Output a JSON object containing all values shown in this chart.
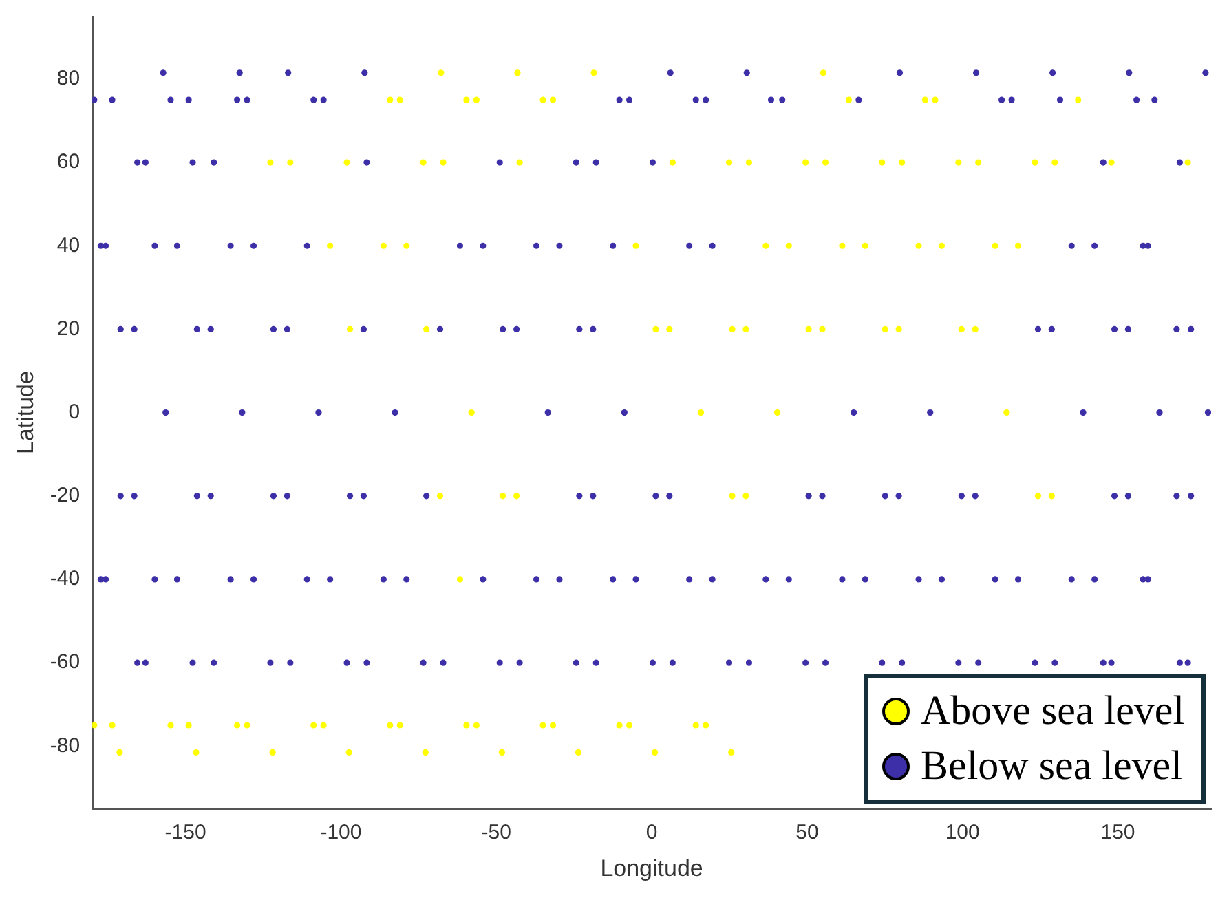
{
  "chart_data": {
    "type": "scatter",
    "xlabel": "Longitude",
    "ylabel": "Latitude",
    "xlim": [
      -180,
      180
    ],
    "ylim": [
      -95,
      95
    ],
    "xticks": [
      -150,
      -100,
      -50,
      0,
      50,
      100,
      150
    ],
    "yticks": [
      -80,
      -60,
      -40,
      -20,
      0,
      20,
      40,
      60,
      80
    ],
    "grid": false,
    "legend": "bottom right",
    "marker": "circle",
    "series": [
      {
        "name": "Above sea level",
        "color": "#ffff00",
        "x": [
          -122.7,
          -108.8,
          -98.1,
          -84.2,
          -179.4,
          -84.2,
          -67.8,
          -97.1,
          -86.3,
          -73.5,
          -59.6,
          -154.8,
          -59.6,
          -43.2,
          -171.2,
          -72.5,
          -103.5,
          -61.7,
          -116.3,
          -35.0,
          -130.2,
          -35.0,
          -18.6,
          -146.6,
          -58.0,
          -68.1,
          -47.9,
          -78.9,
          -105.6,
          -10.4,
          -122.0,
          -43.5,
          -67.1,
          -81.0,
          -81.0,
          14.2,
          -97.4,
          1.3,
          -42.5,
          24.9,
          -56.4,
          -56.4,
          -72.8,
          55.2,
          15.8,
          5.7,
          25.9,
          25.9,
          -5.1,
          36.7,
          49.5,
          -31.8,
          63.4,
          -31.8,
          -48.2,
          40.4,
          30.3,
          50.5,
          30.3,
          61.3,
          6.7,
          74.1,
          88.0,
          -7.2,
          -23.6,
          54.9,
          75.1,
          44.1,
          85.9,
          31.3,
          98.7,
          17.4,
          1.0,
          79.5,
          99.7,
          68.7,
          110.5,
          55.9,
          123.3,
          137.2,
          25.6,
          114.2,
          104.1,
          124.3,
          93.3,
          80.5,
          147.9,
          128.7,
          117.9,
          105.1,
          172.5,
          91.2,
          -173.6,
          129.7,
          -149.0,
          -133.4
        ],
        "values": [
          60,
          -75,
          60,
          75,
          -75,
          -75,
          81.5,
          20,
          40,
          60,
          75,
          -75,
          -75,
          81.5,
          -81.5,
          20,
          40,
          -40,
          60,
          75,
          -75,
          -75,
          81.5,
          -81.5,
          0,
          -20,
          -20,
          40,
          -75,
          -75,
          -81.5,
          -20,
          60,
          75,
          -75,
          -75,
          -81.5,
          20,
          60,
          60,
          75,
          -75,
          -81.5,
          81.5,
          0,
          20,
          20,
          -20,
          40,
          40,
          60,
          75,
          75,
          -75,
          -81.5,
          0,
          20,
          20,
          -20,
          40,
          60,
          60,
          75,
          -75,
          -81.5,
          20,
          20,
          40,
          40,
          60,
          60,
          -75,
          -81.5,
          20,
          20,
          40,
          40,
          60,
          60,
          75,
          -81.5,
          0,
          20,
          -20,
          40,
          60,
          60,
          -20,
          40,
          60,
          60,
          75,
          -75,
          60,
          -75,
          -75
        ]
      },
      {
        "name": "Below sea level",
        "color": "#3c2fa8",
        "x": [
          -156.4,
          -166.5,
          -146.3,
          -166.5,
          -146.3,
          -177.3,
          -135.5,
          -177.3,
          -135.5,
          169.9,
          169.9,
          -122.7,
          156.0,
          -108.8,
          -92.4,
          -131.8,
          -141.9,
          -121.7,
          -141.9,
          -121.7,
          -152.7,
          -110.9,
          -152.7,
          -110.9,
          -165.5,
          -165.5,
          -98.1,
          -179.4,
          -107.2,
          -117.3,
          -117.3,
          -97.1,
          -128.1,
          -128.1,
          -86.3,
          -140.9,
          -140.9,
          -73.5,
          -154.8,
          -82.6,
          -92.7,
          -92.7,
          -72.5,
          -61.7,
          -103.5,
          -48.9,
          -116.3,
          -48.9,
          -130.2,
          -68.1,
          -47.9,
          -37.1,
          -78.9,
          -37.1,
          -91.7,
          -24.3,
          -91.7,
          -24.3,
          -105.6,
          -10.4,
          6.0,
          -33.4,
          -43.5,
          -23.3,
          -23.3,
          -54.3,
          -12.5,
          -54.3,
          -12.5,
          0.3,
          -67.1,
          0.3,
          14.2,
          30.6,
          -8.8,
          -18.9,
          -18.9,
          1.3,
          -29.7,
          12.1,
          -29.7,
          12.1,
          -42.5,
          24.9,
          38.4,
          5.7,
          -5.1,
          36.7,
          -17.9,
          -17.9,
          49.5,
          79.8,
          50.5,
          19.5,
          19.5,
          61.3,
          6.7,
          74.1,
          -7.2,
          104.4,
          65.0,
          54.9,
          75.1,
          44.1,
          85.9,
          31.3,
          98.7,
          17.4,
          112.6,
          129.0,
          89.6,
          79.5,
          99.7,
          68.7,
          110.5,
          55.9,
          123.3,
          42.0,
          153.6,
          124.3,
          104.1,
          135.1,
          93.3,
          135.1,
          80.5,
          147.9,
          66.6,
          161.8,
          178.2,
          138.8,
          128.7,
          148.9,
          148.9,
          159.7,
          117.9,
          159.7,
          105.1,
          172.5,
          -173.6,
          -157.2,
          163.4,
          153.3,
          173.5,
          153.3,
          173.5,
          142.5,
          -175.7,
          142.5,
          -175.7,
          -162.9,
          129.7,
          -162.9,
          115.8,
          -149.0,
          -132.6,
          179.0,
          168.9,
          -170.9,
          168.9,
          -170.9,
          158.1,
          -159.9,
          158.1,
          -159.9,
          145.3,
          -147.7,
          145.3,
          -147.7,
          131.4,
          -133.4,
          -117.0
        ],
        "values": [
          0,
          20,
          20,
          -20,
          -20,
          40,
          40,
          -40,
          -40,
          60,
          -60,
          -60,
          75,
          75,
          81.5,
          0,
          20,
          20,
          -20,
          -20,
          40,
          40,
          -40,
          -40,
          60,
          -60,
          -60,
          75,
          0,
          20,
          -20,
          -20,
          40,
          -40,
          -40,
          60,
          -60,
          -60,
          75,
          0,
          20,
          -20,
          -20,
          40,
          -40,
          60,
          -60,
          -60,
          75,
          20,
          20,
          40,
          -40,
          -40,
          60,
          60,
          -60,
          -60,
          75,
          75,
          81.5,
          0,
          20,
          20,
          -20,
          40,
          40,
          -40,
          -40,
          60,
          -60,
          -60,
          75,
          81.5,
          0,
          20,
          -20,
          -20,
          40,
          40,
          -40,
          -40,
          -60,
          -60,
          75,
          -20,
          -40,
          -40,
          60,
          -60,
          -60,
          81.5,
          -20,
          40,
          -40,
          -40,
          -60,
          -60,
          75,
          81.5,
          0,
          -20,
          -20,
          -40,
          -40,
          -60,
          -60,
          75,
          75,
          81.5,
          0,
          -20,
          -20,
          -40,
          -40,
          -60,
          -60,
          75,
          81.5,
          20,
          -20,
          40,
          -40,
          -40,
          -60,
          -60,
          75,
          75,
          81.5,
          0,
          20,
          20,
          -20,
          40,
          -40,
          -40,
          -60,
          -60,
          75,
          81.5,
          0,
          20,
          20,
          -20,
          -20,
          40,
          40,
          -40,
          -40,
          60,
          -60,
          -60,
          75,
          75,
          81.5,
          0,
          20,
          20,
          -20,
          -20,
          40,
          40,
          -40,
          -40,
          60,
          60,
          -60,
          -60,
          75,
          75,
          81.5
        ]
      }
    ]
  }
}
